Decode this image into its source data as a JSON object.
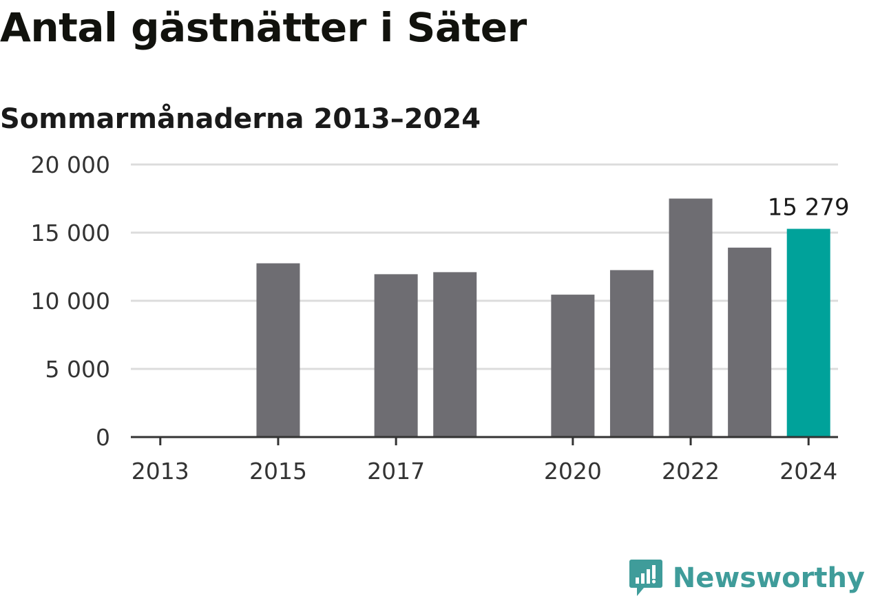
{
  "title": "Antal gästnätter i Säter",
  "subtitle": "Sommarmånaderna 2013–2024",
  "brand": {
    "name": "Newsworthy",
    "color": "#3f9c9a",
    "icon": "newsworthy-chart-bubble-icon"
  },
  "chart_data": {
    "type": "bar",
    "categories": [
      "2013",
      "2014",
      "2015",
      "2016",
      "2017",
      "2018",
      "2019",
      "2020",
      "2021",
      "2022",
      "2023",
      "2024"
    ],
    "values": [
      null,
      null,
      12750,
      null,
      11950,
      12100,
      null,
      10450,
      12250,
      17500,
      13900,
      15279
    ],
    "xtick_labels": [
      "2013",
      "2015",
      "2017",
      "2020",
      "2022",
      "2024"
    ],
    "ytick_labels": [
      "0",
      "5 000",
      "10 000",
      "15 000",
      "20 000"
    ],
    "ylim": [
      0,
      20000
    ],
    "yticks": [
      0,
      5000,
      10000,
      15000,
      20000
    ],
    "grid": true,
    "bar_color": "#6e6d72",
    "highlight_color": "#00a29a",
    "highlight_category": "2024",
    "highlight_label": "15 279",
    "xlabel": "",
    "ylabel": ""
  }
}
